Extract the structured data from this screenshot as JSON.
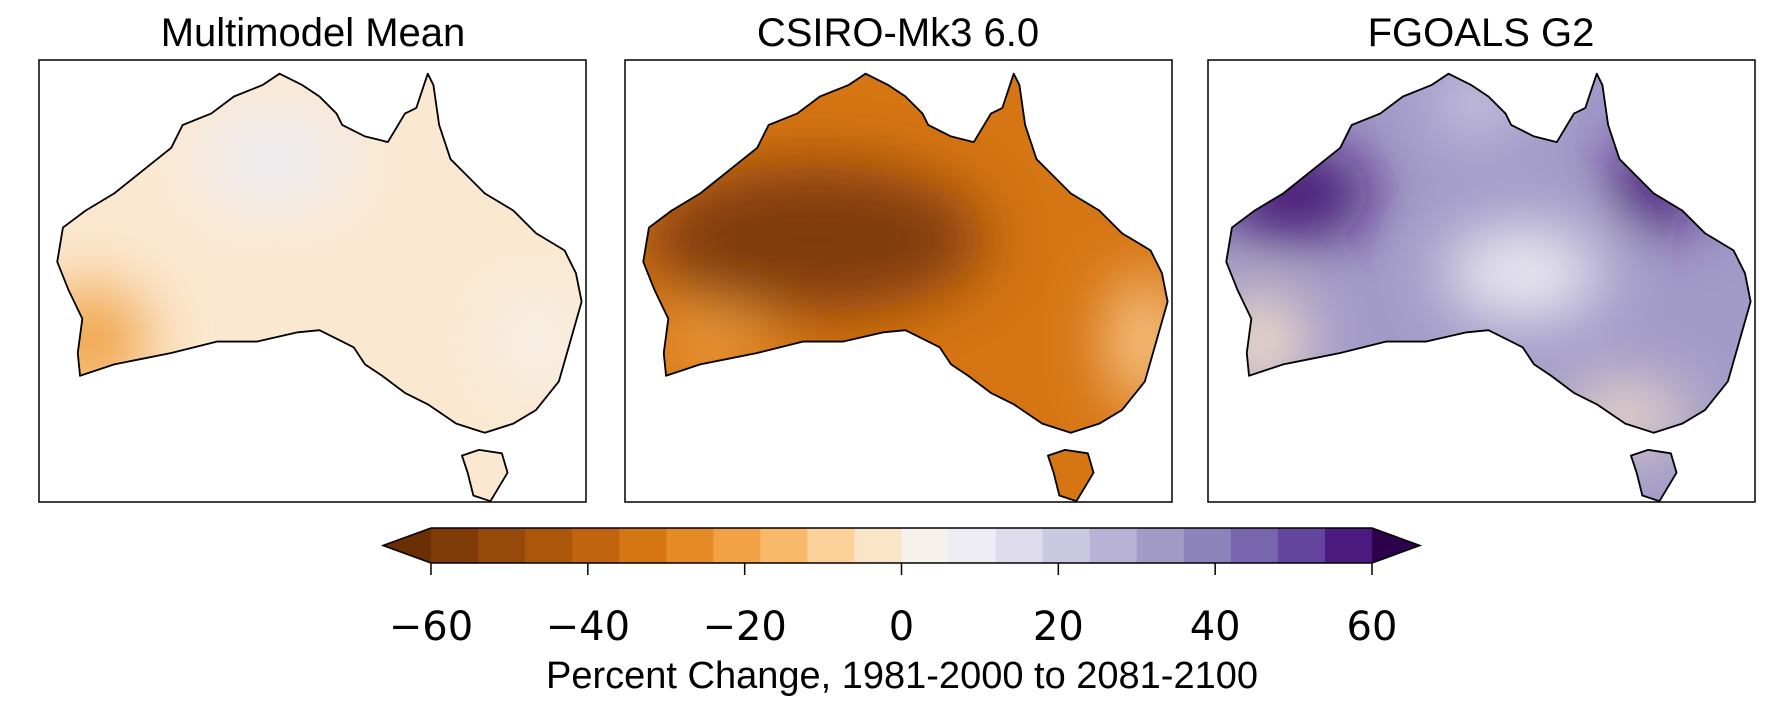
{
  "panels": [
    {
      "title": "Multimodel Mean"
    },
    {
      "title": "CSIRO-Mk3 6.0"
    },
    {
      "title": "FGOALS G2"
    }
  ],
  "colorbar": {
    "label": "Percent Change, 1981-2000 to 2081-2100",
    "boundaries": [
      -60,
      -54,
      -48,
      -42,
      -36,
      -30,
      -24,
      -18,
      -12,
      -6,
      0,
      6,
      12,
      18,
      24,
      30,
      36,
      42,
      48,
      54,
      60
    ],
    "colors": [
      "#7f3b08",
      "#954a0a",
      "#ab570b",
      "#c1640f",
      "#d67513",
      "#e58a26",
      "#f0a245",
      "#f9b96a",
      "#fdd19a",
      "#fbe5c8",
      "#f6f1ea",
      "#eeedf3",
      "#dedcec",
      "#cbc8e2",
      "#b7b2d6",
      "#a29bc8",
      "#8c83bb",
      "#7766ad",
      "#64459d",
      "#4a1a7f"
    ],
    "extend_colors": [
      "#6b2f06",
      "#2d004b"
    ],
    "xlim": [
      -60,
      60
    ],
    "xticks": [
      {
        "value": -60,
        "label": "−60"
      },
      {
        "value": -40,
        "label": "−40"
      },
      {
        "value": -20,
        "label": "−20"
      },
      0,
      20,
      40,
      60
    ]
  }
}
